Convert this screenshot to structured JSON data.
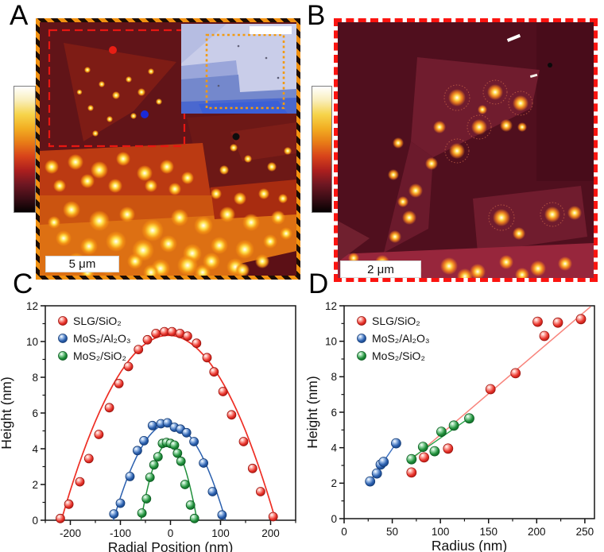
{
  "panels": {
    "a": {
      "label": "A",
      "scale_bar": "5 μm"
    },
    "b": {
      "label": "B",
      "scale_bar": "2 μm"
    },
    "c": {
      "label": "C"
    },
    "d": {
      "label": "D"
    }
  },
  "colorbar": {
    "stops": [
      "#ffffff",
      "#f9eeba",
      "#f6d44a",
      "#f2ae22",
      "#e87c17",
      "#d8431a",
      "#ad1f1e",
      "#6f1722",
      "#3c0d16",
      "#050202"
    ]
  },
  "chart_data": [
    {
      "panel": "C",
      "type": "scatter",
      "title": "",
      "xlabel": "Radial Position (nm)",
      "ylabel": "Height (nm)",
      "xlim": [
        -250,
        250
      ],
      "ylim": [
        0,
        12
      ],
      "xticks": [
        -200,
        -100,
        0,
        100,
        200
      ],
      "yticks": [
        0,
        2,
        4,
        6,
        8,
        10,
        12
      ],
      "xminor": 50,
      "yminor": 1,
      "grid": false,
      "legend_position": "top-left",
      "series": [
        {
          "name": "SLG/SiO₂",
          "color": "#e8322a",
          "light": "#ffb0a8",
          "dark": "#9c120d",
          "line_color": "#ee2e24",
          "line_width": 1.7,
          "fit": {
            "type": "parabola",
            "peak": 10.35,
            "center": -4,
            "half_width": 214
          },
          "points": [
            [
              -220,
              0.1
            ],
            [
              -203,
              0.9
            ],
            [
              -181,
              2.15
            ],
            [
              -163,
              3.45
            ],
            [
              -143,
              4.8
            ],
            [
              -122,
              6.3
            ],
            [
              -103,
              7.65
            ],
            [
              -84,
              8.6
            ],
            [
              -64,
              9.55
            ],
            [
              -46,
              10.1
            ],
            [
              -29,
              10.45
            ],
            [
              -12,
              10.55
            ],
            [
              3,
              10.55
            ],
            [
              19,
              10.45
            ],
            [
              34,
              10.3
            ],
            [
              52,
              9.9
            ],
            [
              73,
              9.1
            ],
            [
              87,
              8.3
            ],
            [
              105,
              7.2
            ],
            [
              122,
              5.9
            ],
            [
              146,
              4.4
            ],
            [
              164,
              2.9
            ],
            [
              180,
              1.6
            ],
            [
              205,
              0.2
            ]
          ]
        },
        {
          "name": "MoS₂/Al₂O₃",
          "color": "#2a5fae",
          "light": "#a6c4ec",
          "dark": "#133a74",
          "line_color": "#2a5fae",
          "line_width": 1.5,
          "fit": {
            "type": "parabola",
            "peak": 5.42,
            "center": -2,
            "half_width": 112
          },
          "points": [
            [
              -113,
              0.35
            ],
            [
              -100,
              0.95
            ],
            [
              -81,
              2.45
            ],
            [
              -66,
              3.9
            ],
            [
              -53,
              4.45
            ],
            [
              -36,
              5.3
            ],
            [
              -19,
              5.4
            ],
            [
              -6,
              5.45
            ],
            [
              8,
              5.2
            ],
            [
              20,
              5.1
            ],
            [
              32,
              4.9
            ],
            [
              47,
              4.4
            ],
            [
              66,
              3.2
            ],
            [
              84,
              1.6
            ],
            [
              103,
              0.3
            ]
          ]
        },
        {
          "name": "MoS₂/SiO₂",
          "color": "#1f8f3a",
          "light": "#9eddae",
          "dark": "#0b5a20",
          "line_color": "#1f8f3a",
          "line_width": 1.5,
          "fit": {
            "type": "parabola",
            "peak": 4.32,
            "center": -3,
            "half_width": 56
          },
          "points": [
            [
              -57,
              0.4
            ],
            [
              -48,
              1.2
            ],
            [
              -41,
              2.4
            ],
            [
              -33,
              3.1
            ],
            [
              -25,
              3.55
            ],
            [
              -16,
              4.3
            ],
            [
              -8,
              4.35
            ],
            [
              0,
              4.3
            ],
            [
              8,
              4.2
            ],
            [
              14,
              3.75
            ],
            [
              21,
              3.3
            ],
            [
              29,
              2.0
            ],
            [
              40,
              0.85
            ],
            [
              48,
              0.1
            ]
          ]
        }
      ]
    },
    {
      "panel": "D",
      "type": "scatter",
      "title": "",
      "xlabel": "Radius (nm)",
      "ylabel": "Height (nm)",
      "xlim": [
        0,
        260
      ],
      "ylim": [
        0,
        12
      ],
      "xticks": [
        0,
        50,
        100,
        150,
        200,
        250
      ],
      "yticks": [
        0,
        2,
        4,
        6,
        8,
        10,
        12
      ],
      "xminor": 25,
      "yminor": 1,
      "grid": false,
      "legend_position": "top-left",
      "series": [
        {
          "name": "SLG/SiO₂",
          "color": "#e8322a",
          "light": "#ffb0a8",
          "dark": "#9c120d",
          "line_color": "#f8837b",
          "line_width": 1.5,
          "fit": {
            "type": "line",
            "x1": 68,
            "y1": 3.25,
            "x2": 256,
            "y2": 11.95
          },
          "points": [
            [
              70,
              2.6
            ],
            [
              83,
              3.45
            ],
            [
              108,
              3.95
            ],
            [
              152,
              7.3
            ],
            [
              178,
              8.2
            ],
            [
              201,
              11.1
            ],
            [
              208,
              10.3
            ],
            [
              222,
              11.05
            ],
            [
              246,
              11.25
            ]
          ]
        },
        {
          "name": "MoS₂/Al₂O₃",
          "color": "#2a5fae",
          "light": "#a6c4ec",
          "dark": "#133a74",
          "line_color": "#3a6fc0",
          "line_width": 1.4,
          "fit": {
            "type": "line",
            "x1": 25,
            "y1": 1.95,
            "x2": 56,
            "y2": 4.4
          },
          "points": [
            [
              27,
              2.1
            ],
            [
              34,
              2.55
            ],
            [
              38,
              3.05
            ],
            [
              41,
              3.2
            ],
            [
              54,
              4.25
            ]
          ]
        },
        {
          "name": "MoS₂/SiO₂",
          "color": "#1f8f3a",
          "light": "#9eddae",
          "dark": "#0b5a20",
          "line_color": "#27a047",
          "line_width": 1.4,
          "fit": {
            "type": "line",
            "x1": 67,
            "y1": 3.3,
            "x2": 132,
            "y2": 5.75
          },
          "points": [
            [
              70,
              3.35
            ],
            [
              82,
              4.05
            ],
            [
              94,
              3.8
            ],
            [
              101,
              4.9
            ],
            [
              114,
              5.25
            ],
            [
              130,
              5.65
            ]
          ]
        }
      ]
    }
  ]
}
